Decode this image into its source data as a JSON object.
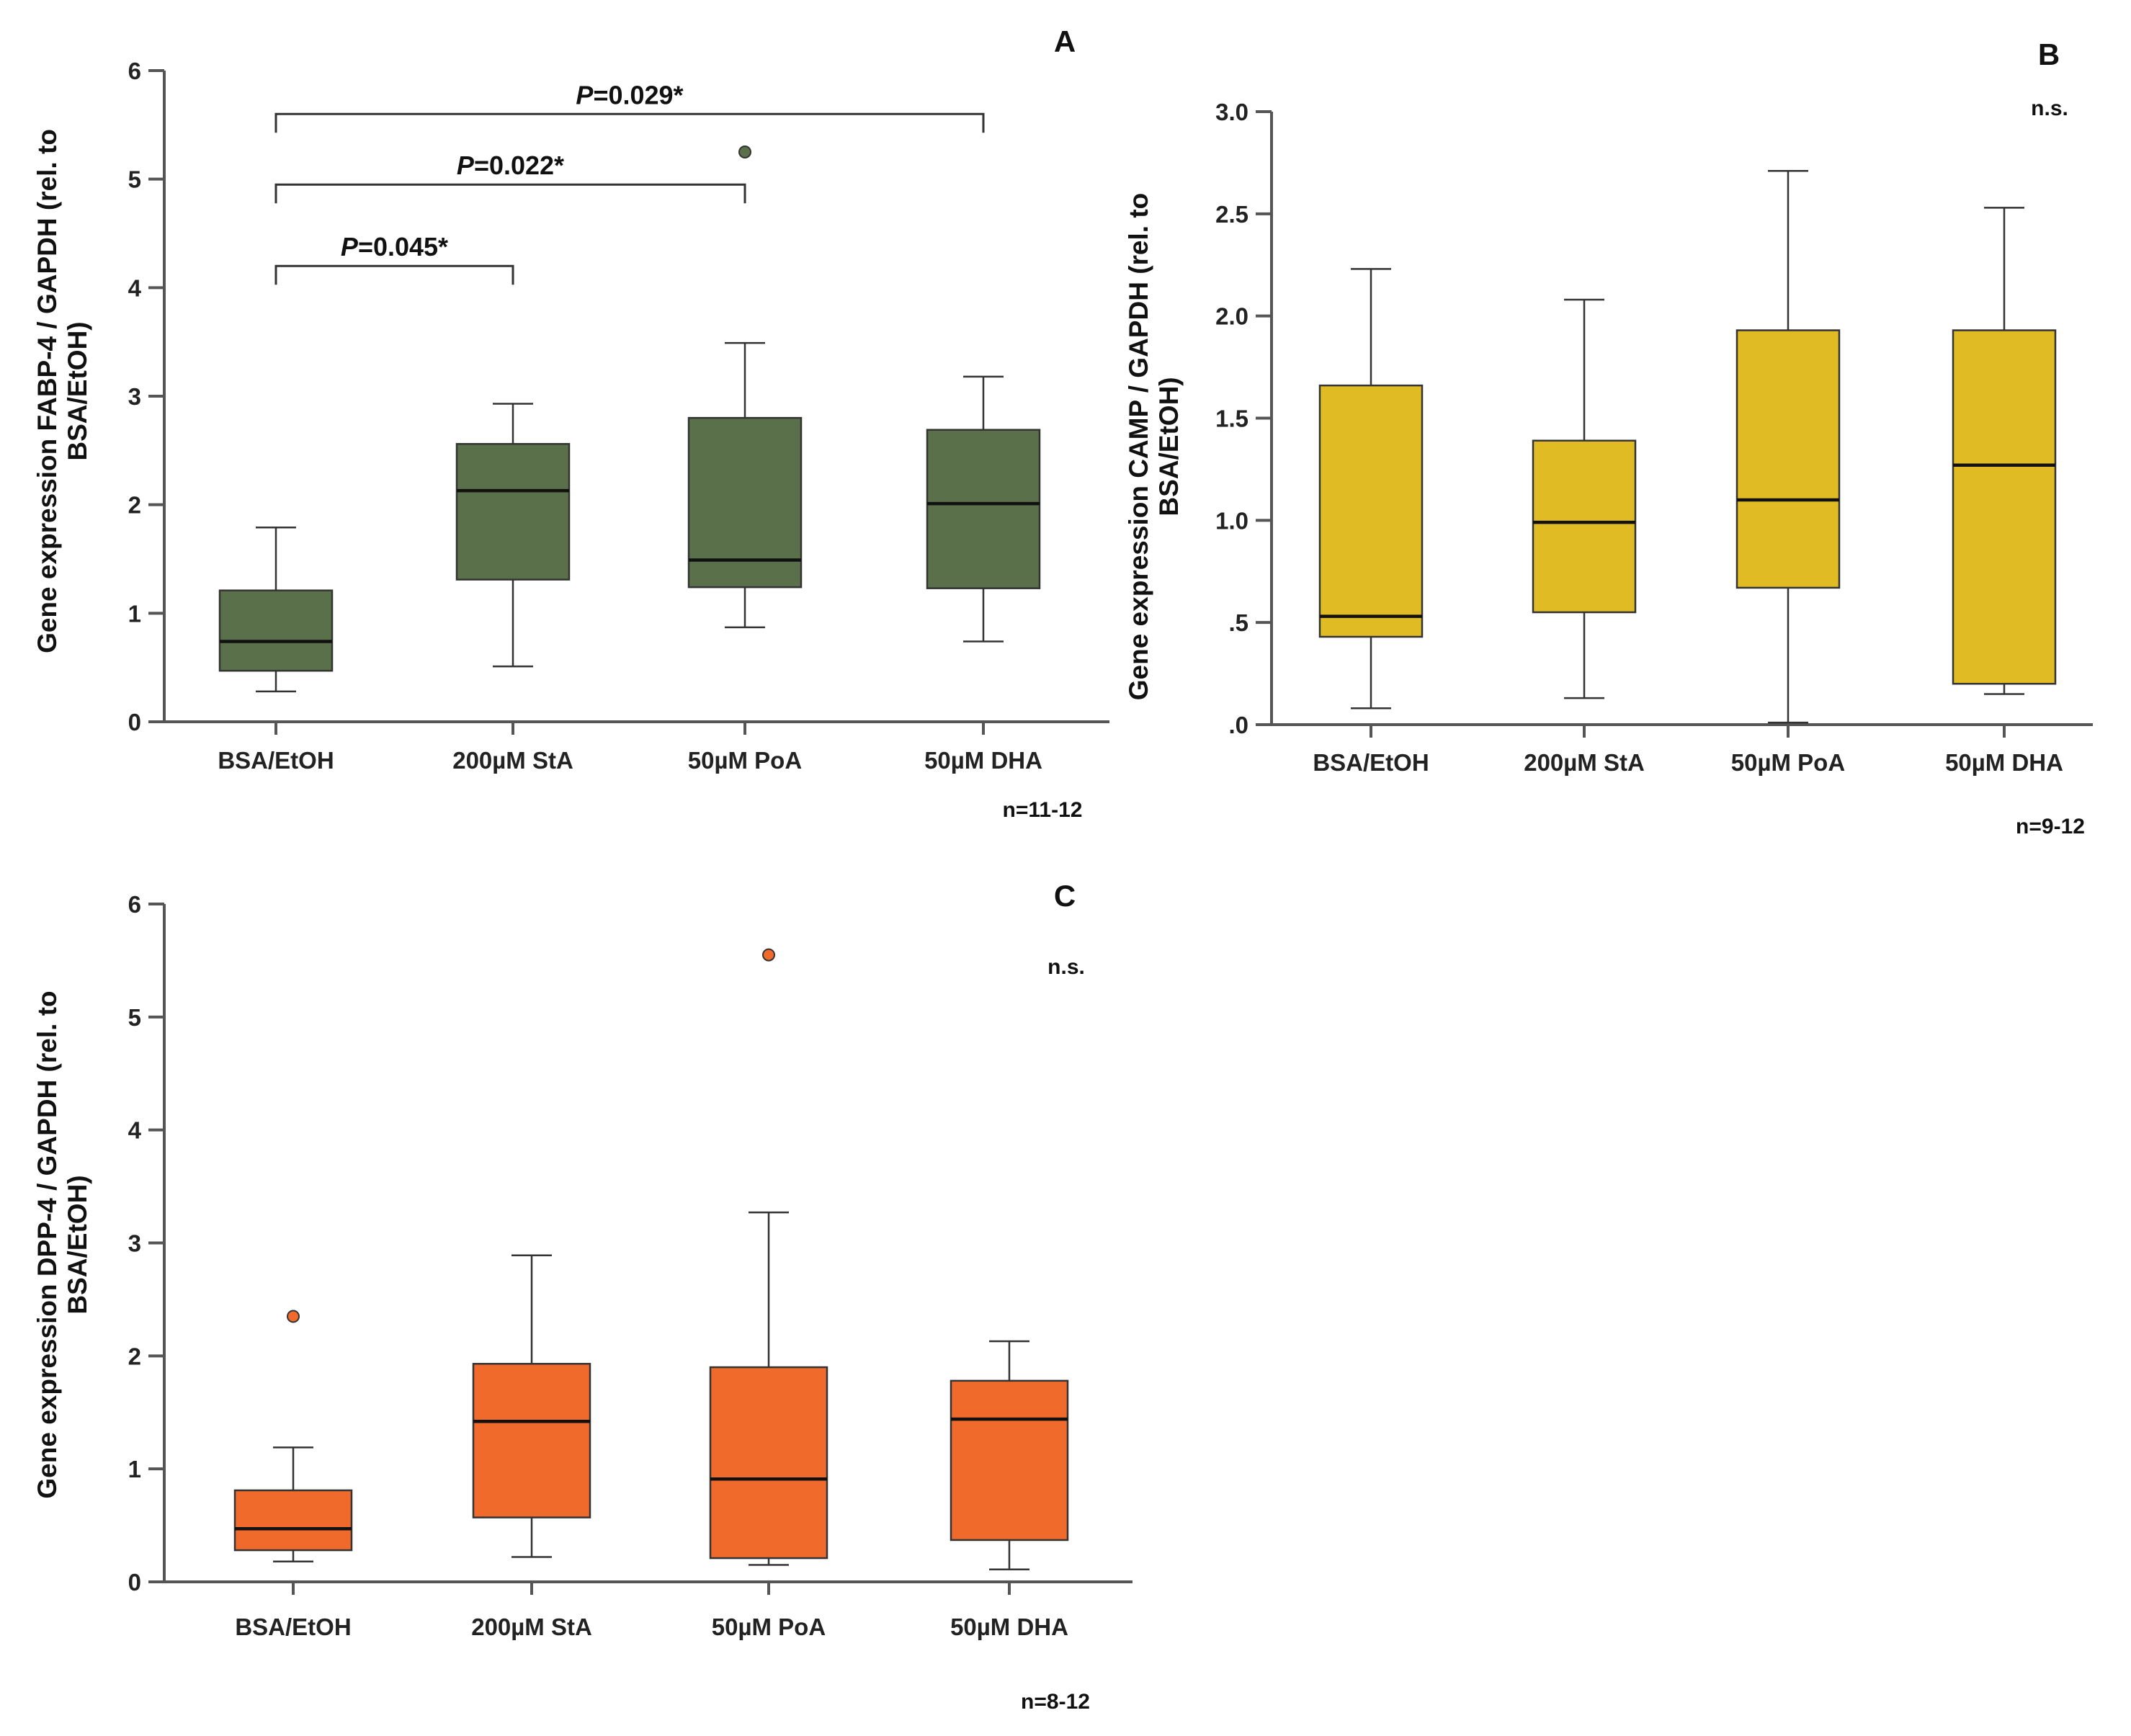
{
  "chart_data": [
    {
      "panel": "A",
      "type": "boxplot",
      "ylabel_lines": [
        "Gene expression FABP-4 / GAPDH (rel. to",
        "BSA/EtOH)"
      ],
      "categories": [
        "BSA/EtOH",
        "200µM StA",
        "50µM PoA",
        "50µM DHA"
      ],
      "ylim": [
        0,
        6
      ],
      "yticks": [
        "0",
        "1",
        "2",
        "3",
        "4",
        "5",
        "6"
      ],
      "ytick_values": [
        0,
        1,
        2,
        3,
        4,
        5,
        6
      ],
      "box_color": "#5a704a",
      "boxes": [
        {
          "category": "BSA/EtOH",
          "whisker_low": 0.28,
          "q1": 0.47,
          "median": 0.74,
          "q3": 1.21,
          "whisker_high": 1.79,
          "outliers": []
        },
        {
          "category": "200µM StA",
          "whisker_low": 0.51,
          "q1": 1.31,
          "median": 2.13,
          "q3": 2.56,
          "whisker_high": 2.93,
          "outliers": []
        },
        {
          "category": "50µM PoA",
          "whisker_low": 0.87,
          "q1": 1.24,
          "median": 1.49,
          "q3": 2.8,
          "whisker_high": 3.49,
          "outliers": [
            5.25
          ]
        },
        {
          "category": "50µM DHA",
          "whisker_low": 0.74,
          "q1": 1.23,
          "median": 2.01,
          "q3": 2.69,
          "whisker_high": 3.18,
          "outliers": []
        }
      ],
      "comparisons": [
        {
          "from": 0,
          "to": 1,
          "y": 4.2,
          "p_label": "P",
          "p_rest": "=0.045*"
        },
        {
          "from": 0,
          "to": 2,
          "y": 4.95,
          "p_label": "P",
          "p_rest": "=0.022*"
        },
        {
          "from": 0,
          "to": 3,
          "y": 5.6,
          "p_label": "P",
          "p_rest": "=0.029*"
        }
      ],
      "significance": "",
      "n_label": "n=11-12"
    },
    {
      "panel": "B",
      "type": "boxplot",
      "ylabel_lines": [
        "Gene expression CAMP / GAPDH (rel. to",
        "BSA/EtOH)"
      ],
      "categories": [
        "BSA/EtOH",
        "200µM StA",
        "50µM PoA",
        "50µM DHA"
      ],
      "ylim": [
        0,
        3
      ],
      "yticks": [
        ".0",
        ".5",
        "1.0",
        "1.5",
        "2.0",
        "2.5",
        "3.0"
      ],
      "ytick_values": [
        0,
        0.5,
        1,
        1.5,
        2,
        2.5,
        3
      ],
      "box_color": "#e0bb24",
      "boxes": [
        {
          "category": "BSA/EtOH",
          "whisker_low": 0.08,
          "q1": 0.43,
          "median": 0.53,
          "q3": 1.66,
          "whisker_high": 2.23,
          "outliers": []
        },
        {
          "category": "200µM StA",
          "whisker_low": 0.13,
          "q1": 0.55,
          "median": 0.99,
          "q3": 1.39,
          "whisker_high": 2.08,
          "outliers": []
        },
        {
          "category": "50µM PoA",
          "whisker_low": 0.01,
          "q1": 0.67,
          "median": 1.1,
          "q3": 1.93,
          "whisker_high": 2.71,
          "outliers": []
        },
        {
          "category": "50µM DHA",
          "whisker_low": 0.15,
          "q1": 0.2,
          "median": 1.27,
          "q3": 1.93,
          "whisker_high": 2.53,
          "outliers": []
        }
      ],
      "comparisons": [],
      "significance": "n.s.",
      "n_label": "n=9-12"
    },
    {
      "panel": "C",
      "type": "boxplot",
      "ylabel_lines": [
        "Gene expression DPP-4 / GAPDH (rel. to",
        "BSA/EtOH)"
      ],
      "categories": [
        "BSA/EtOH",
        "200µM StA",
        "50µM PoA",
        "50µM DHA"
      ],
      "ylim": [
        0,
        6
      ],
      "yticks": [
        "0",
        "1",
        "2",
        "3",
        "4",
        "5",
        "6"
      ],
      "ytick_values": [
        0,
        1,
        2,
        3,
        4,
        5,
        6
      ],
      "box_color": "#f06a2c",
      "boxes": [
        {
          "category": "BSA/EtOH",
          "whisker_low": 0.18,
          "q1": 0.28,
          "median": 0.47,
          "q3": 0.81,
          "whisker_high": 1.19,
          "outliers": [
            2.35
          ]
        },
        {
          "category": "200µM StA",
          "whisker_low": 0.22,
          "q1": 0.57,
          "median": 1.42,
          "q3": 1.93,
          "whisker_high": 2.89,
          "outliers": []
        },
        {
          "category": "50µM PoA",
          "whisker_low": 0.15,
          "q1": 0.21,
          "median": 0.91,
          "q3": 1.9,
          "whisker_high": 3.27,
          "outliers": [
            5.55
          ]
        },
        {
          "category": "50µM DHA",
          "whisker_low": 0.11,
          "q1": 0.37,
          "median": 1.44,
          "q3": 1.78,
          "whisker_high": 2.13,
          "outliers": []
        }
      ],
      "comparisons": [],
      "significance": "n.s.",
      "n_label": "n=8-12"
    }
  ]
}
